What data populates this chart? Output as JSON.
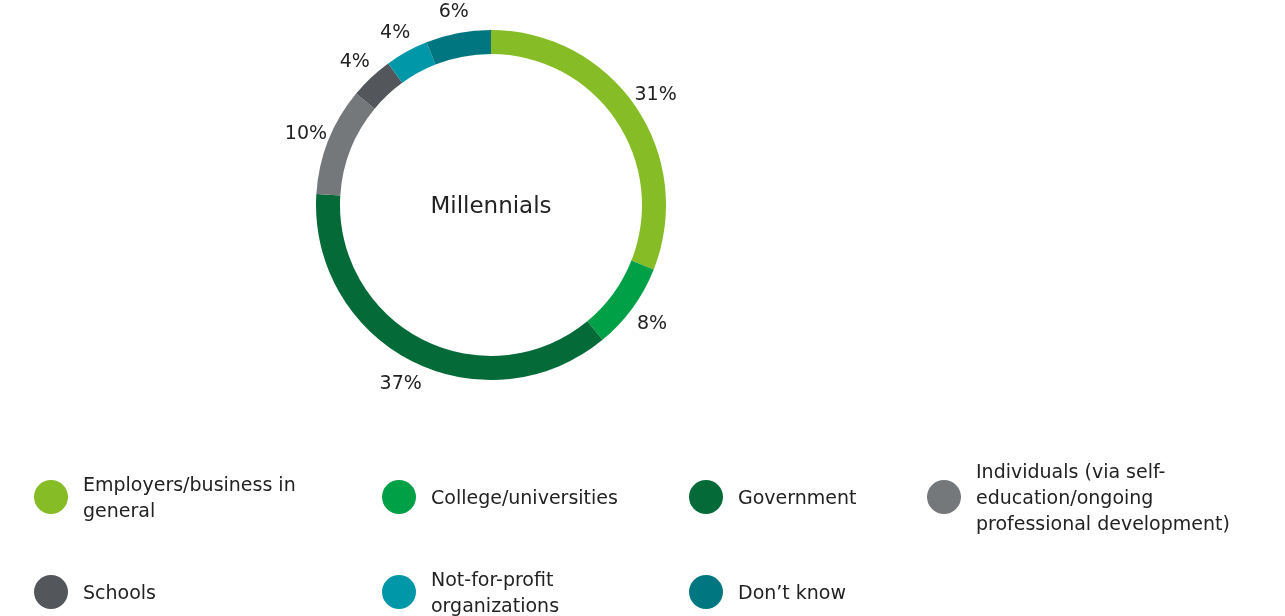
{
  "chart_data": {
    "type": "donut",
    "title": "Millennials",
    "categories": [
      "Employers/business in general",
      "College/universities",
      "Government",
      "Individuals (via self-education/ongoing professional development)",
      "Schools",
      "Not-for-profit organizations",
      "Don’t know"
    ],
    "values": [
      31,
      8,
      37,
      10,
      4,
      4,
      6
    ],
    "value_labels": [
      "31%",
      "8%",
      "37%",
      "10%",
      "4%",
      "4%",
      "6%"
    ],
    "colors": [
      "#86bc25",
      "#00a047",
      "#046a38",
      "#75787b",
      "#53565a",
      "#0097a9",
      "#007680"
    ],
    "legend": "bottom"
  }
}
